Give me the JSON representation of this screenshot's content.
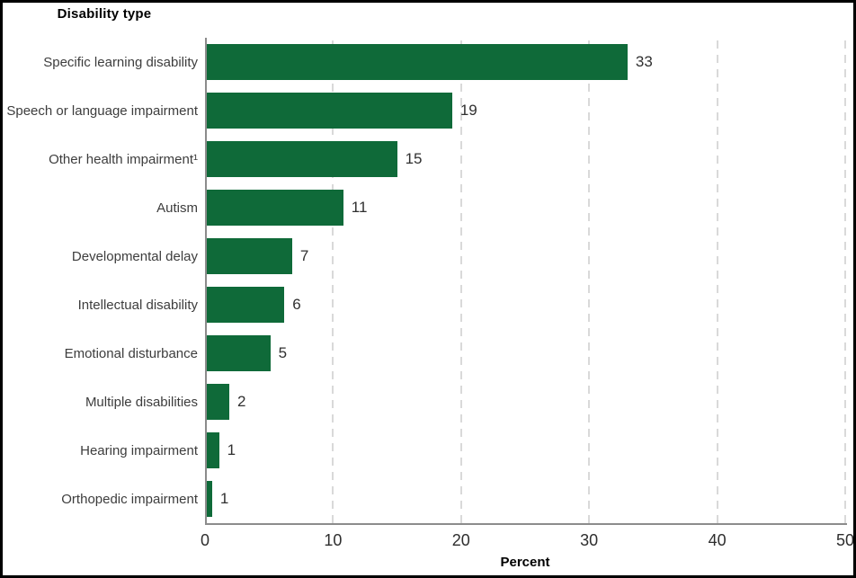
{
  "chart_data": {
    "type": "bar",
    "orientation": "horizontal",
    "title": "Disability type",
    "xlabel": "Percent",
    "xlim": [
      0,
      50
    ],
    "xticks": [
      0,
      10,
      20,
      30,
      40,
      50
    ],
    "grid": "vertical-dashed",
    "legend_position": "none",
    "categories": [
      "Specific learning disability",
      "Speech or language impairment",
      "Other health impairment¹",
      "Autism",
      "Developmental delay",
      "Intellectual disability",
      "Emotional disturbance",
      "Multiple disabilities",
      "Hearing impairment",
      "Orthopedic impairment"
    ],
    "values": [
      33,
      19,
      15,
      11,
      7,
      6,
      5,
      2,
      1,
      1
    ],
    "value_labels": [
      "33",
      "19",
      "15",
      "11",
      "7",
      "6",
      "5",
      "2",
      "1",
      "1"
    ],
    "visual_lengths": [
      33,
      19.3,
      15,
      10.8,
      6.8,
      6.2,
      5.1,
      1.9,
      1.1,
      0.55
    ],
    "colors": {
      "bar": "#0f6a39",
      "axis": "#8c8c8c",
      "gridline": "#d9d9d9",
      "label_text": "#3d3d3d",
      "title_text": "#000000",
      "background": "#ffffff",
      "border": "#000000"
    }
  }
}
